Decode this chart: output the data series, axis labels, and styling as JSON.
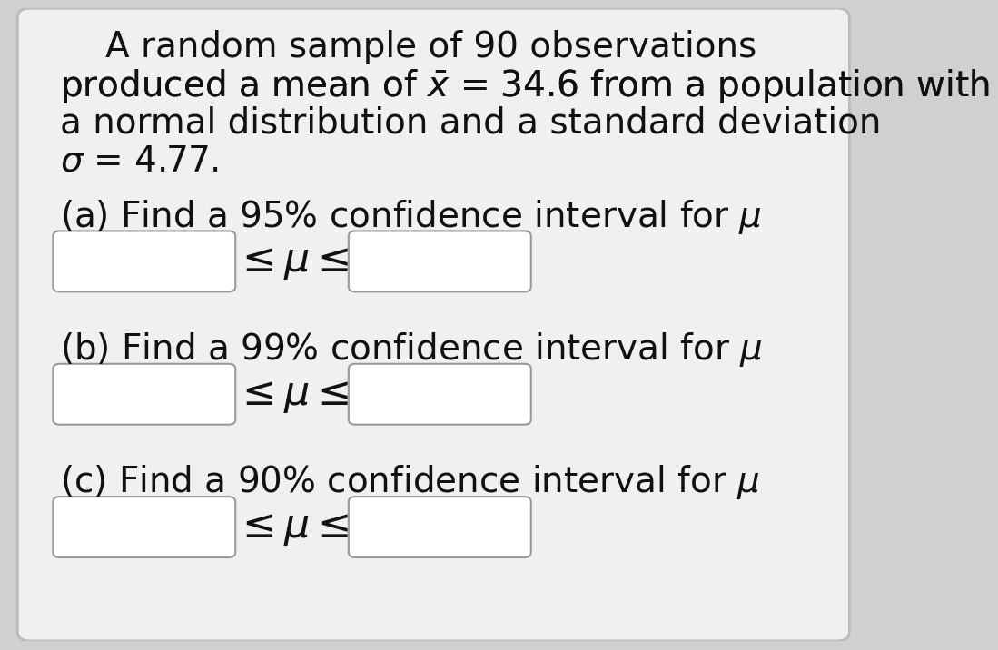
{
  "bg_color": "#d0d0d0",
  "card_color": "#f0f0f0",
  "text_color": "#111111",
  "box_color": "#ffffff",
  "box_edge_color": "#999999",
  "font_size_main": 28,
  "font_size_ineq": 32,
  "line1": "A random sample of 90 observations",
  "line2_pre": "produced a mean of ",
  "line2_post": " = 34.6 from a population with",
  "line3": "a normal distribution and a standard deviation",
  "line4": " = 4.77.",
  "part_a": "(a) Find a 95% confidence interval for ",
  "part_b": "(b) Find a 99% confidence interval for ",
  "part_c": "(c) Find a 90% confidence interval for "
}
